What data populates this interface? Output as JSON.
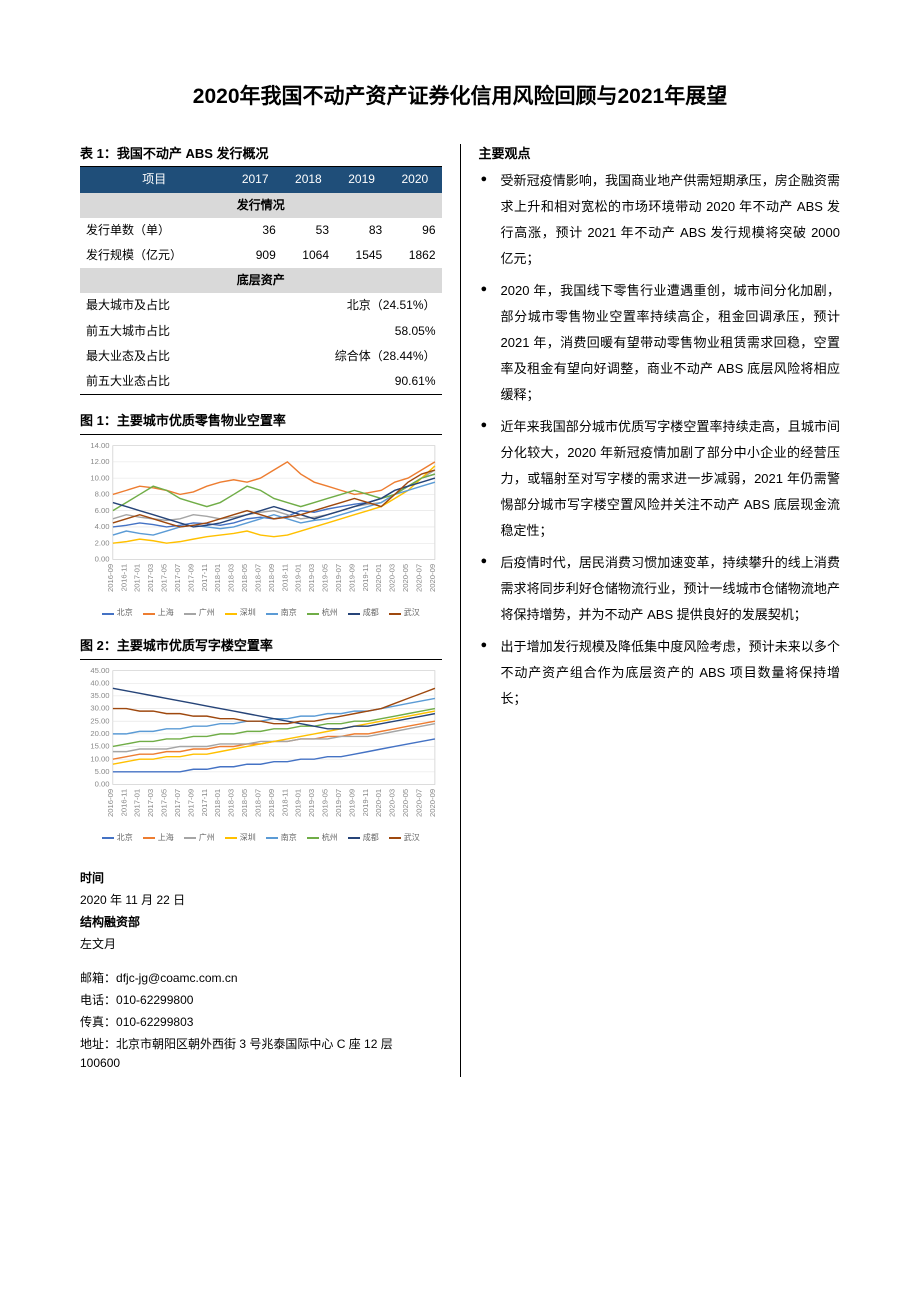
{
  "title": "2020年我国不动产资产证券化信用风险回顾与2021年展望",
  "table1": {
    "caption": "表 1：我国不动产 ABS 发行概况",
    "headers": [
      "项目",
      "2017",
      "2018",
      "2019",
      "2020"
    ],
    "section1_title": "发行情况",
    "rows1": [
      {
        "label": "发行单数（单）",
        "vals": [
          "36",
          "53",
          "83",
          "96"
        ]
      },
      {
        "label": "发行规模（亿元）",
        "vals": [
          "909",
          "1064",
          "1545",
          "1862"
        ]
      }
    ],
    "section2_title": "底层资产",
    "rows2": [
      {
        "label": "最大城市及占比",
        "merged": "北京（24.51%）"
      },
      {
        "label": "前五大城市占比",
        "merged": "58.05%"
      },
      {
        "label": "最大业态及占比",
        "merged": "综合体（28.44%）"
      },
      {
        "label": "前五大业态占比",
        "merged": "90.61%"
      }
    ]
  },
  "chart1": {
    "caption": "图 1：主要城市优质零售物业空置率",
    "ylim": [
      0,
      14
    ],
    "ytick_step": 2,
    "ylabels": [
      "0.00",
      "2.00",
      "4.00",
      "6.00",
      "8.00",
      "10.00",
      "12.00",
      "14.00"
    ],
    "xlabels": [
      "2016-09",
      "2016-11",
      "2017-01",
      "2017-03",
      "2017-05",
      "2017-07",
      "2017-09",
      "2017-11",
      "2018-01",
      "2018-03",
      "2018-05",
      "2018-07",
      "2018-09",
      "2018-11",
      "2019-01",
      "2019-03",
      "2019-05",
      "2019-07",
      "2019-09",
      "2019-11",
      "2020-01",
      "2020-03",
      "2020-05",
      "2020-07",
      "2020-09"
    ],
    "series": [
      {
        "name": "北京",
        "color": "#4472c4",
        "values": [
          4.0,
          4.2,
          4.5,
          4.3,
          4.0,
          4.2,
          4.5,
          4.4,
          4.2,
          4.5,
          5.0,
          5.2,
          5.0,
          5.3,
          6.0,
          5.8,
          6.2,
          6.5,
          6.8,
          7.0,
          7.5,
          8.5,
          9.0,
          10.0,
          10.5
        ]
      },
      {
        "name": "上海",
        "color": "#ed7d31",
        "values": [
          8.0,
          8.5,
          9.0,
          8.8,
          8.5,
          8.0,
          8.3,
          9.0,
          9.5,
          9.8,
          9.5,
          10.0,
          11.0,
          12.0,
          10.5,
          9.5,
          9.0,
          8.5,
          8.0,
          8.2,
          8.5,
          9.5,
          10.0,
          11.0,
          12.0
        ]
      },
      {
        "name": "广州",
        "color": "#a5a5a5",
        "values": [
          5.0,
          5.5,
          5.2,
          5.0,
          4.8,
          5.0,
          5.5,
          5.3,
          5.0,
          5.2,
          5.5,
          5.8,
          6.0,
          5.5,
          5.0,
          5.2,
          5.5,
          6.0,
          6.5,
          6.8,
          7.0,
          8.0,
          9.0,
          10.0,
          11.0
        ]
      },
      {
        "name": "深圳",
        "color": "#ffc000",
        "values": [
          2.0,
          2.2,
          2.5,
          2.3,
          2.0,
          2.2,
          2.5,
          2.8,
          3.0,
          3.2,
          3.5,
          3.0,
          2.8,
          3.0,
          3.5,
          4.0,
          4.5,
          5.0,
          5.5,
          6.0,
          6.5,
          7.5,
          8.5,
          10.0,
          11.5
        ]
      },
      {
        "name": "南京",
        "color": "#5b9bd5",
        "values": [
          3.0,
          3.5,
          3.2,
          3.0,
          3.5,
          4.0,
          4.2,
          4.0,
          3.8,
          4.0,
          4.5,
          5.0,
          5.5,
          5.0,
          4.5,
          4.8,
          5.0,
          5.5,
          6.0,
          6.5,
          7.0,
          8.0,
          8.5,
          9.0,
          9.5
        ]
      },
      {
        "name": "杭州",
        "color": "#70ad47",
        "values": [
          6.0,
          7.0,
          8.0,
          9.0,
          8.5,
          7.5,
          7.0,
          6.5,
          7.0,
          8.0,
          9.0,
          8.5,
          7.5,
          7.0,
          6.5,
          7.0,
          7.5,
          8.0,
          8.5,
          8.0,
          7.5,
          8.0,
          9.0,
          10.0,
          10.5
        ]
      },
      {
        "name": "成都",
        "color": "#264478",
        "values": [
          7.0,
          6.5,
          6.0,
          5.5,
          5.0,
          4.5,
          4.0,
          4.2,
          4.5,
          5.0,
          5.5,
          6.0,
          6.5,
          6.0,
          5.5,
          5.0,
          5.5,
          6.0,
          6.5,
          7.0,
          7.5,
          8.5,
          9.0,
          9.5,
          10.0
        ]
      },
      {
        "name": "武汉",
        "color": "#9e480e",
        "values": [
          4.5,
          5.0,
          5.5,
          5.0,
          4.5,
          4.0,
          4.2,
          4.5,
          5.0,
          5.5,
          6.0,
          5.5,
          5.0,
          5.2,
          5.5,
          6.0,
          6.5,
          7.0,
          7.5,
          7.0,
          6.5,
          8.0,
          9.5,
          10.5,
          11.0
        ]
      }
    ]
  },
  "chart2": {
    "caption": "图 2：主要城市优质写字楼空置率",
    "ylim": [
      0,
      45
    ],
    "ytick_step": 5,
    "ylabels": [
      "0.00",
      "5.00",
      "10.00",
      "15.00",
      "20.00",
      "25.00",
      "30.00",
      "35.00",
      "40.00",
      "45.00"
    ],
    "xlabels": [
      "2016-09",
      "2016-11",
      "2017-01",
      "2017-03",
      "2017-05",
      "2017-07",
      "2017-09",
      "2017-11",
      "2018-01",
      "2018-03",
      "2018-05",
      "2018-07",
      "2018-09",
      "2018-11",
      "2019-01",
      "2019-03",
      "2019-05",
      "2019-07",
      "2019-09",
      "2019-11",
      "2020-01",
      "2020-03",
      "2020-05",
      "2020-07",
      "2020-09"
    ],
    "series": [
      {
        "name": "北京",
        "color": "#4472c4",
        "values": [
          5,
          5,
          5,
          5,
          5,
          5,
          6,
          6,
          7,
          7,
          8,
          8,
          9,
          9,
          10,
          10,
          11,
          11,
          12,
          13,
          14,
          15,
          16,
          17,
          18
        ]
      },
      {
        "name": "上海",
        "color": "#ed7d31",
        "values": [
          10,
          11,
          12,
          12,
          13,
          13,
          14,
          14,
          15,
          15,
          16,
          16,
          17,
          17,
          18,
          18,
          19,
          19,
          20,
          20,
          21,
          22,
          23,
          24,
          25
        ]
      },
      {
        "name": "广州",
        "color": "#a5a5a5",
        "values": [
          13,
          13,
          14,
          14,
          14,
          15,
          15,
          15,
          16,
          16,
          16,
          17,
          17,
          17,
          18,
          18,
          18,
          19,
          19,
          19,
          20,
          21,
          22,
          23,
          24
        ]
      },
      {
        "name": "深圳",
        "color": "#ffc000",
        "values": [
          8,
          9,
          10,
          10,
          11,
          11,
          12,
          12,
          13,
          14,
          15,
          16,
          17,
          18,
          19,
          20,
          21,
          22,
          23,
          24,
          25,
          26,
          27,
          28,
          29
        ]
      },
      {
        "name": "南京",
        "color": "#5b9bd5",
        "values": [
          20,
          20,
          21,
          21,
          22,
          22,
          23,
          23,
          24,
          24,
          25,
          25,
          26,
          26,
          27,
          27,
          28,
          28,
          29,
          29,
          30,
          31,
          32,
          33,
          34
        ]
      },
      {
        "name": "杭州",
        "color": "#70ad47",
        "values": [
          15,
          16,
          17,
          17,
          18,
          18,
          19,
          19,
          20,
          20,
          21,
          21,
          22,
          22,
          23,
          23,
          24,
          24,
          25,
          25,
          26,
          27,
          28,
          29,
          30
        ]
      },
      {
        "name": "成都",
        "color": "#264478",
        "values": [
          38,
          37,
          36,
          35,
          34,
          33,
          32,
          31,
          30,
          29,
          28,
          27,
          26,
          25,
          24,
          23,
          22,
          22,
          23,
          23,
          24,
          25,
          26,
          27,
          28
        ]
      },
      {
        "name": "武汉",
        "color": "#9e480e",
        "values": [
          30,
          30,
          29,
          29,
          28,
          28,
          27,
          27,
          26,
          26,
          25,
          25,
          24,
          24,
          25,
          25,
          26,
          27,
          28,
          29,
          30,
          32,
          34,
          36,
          38
        ]
      }
    ]
  },
  "meta": {
    "time_label": "时间",
    "time_value": "2020 年 11 月 22 日",
    "dept_label": "结构融资部",
    "author": "左文月",
    "email_label": "邮箱：",
    "email_value": "dfjc-jg@coamc.com.cn",
    "phone_label": "电话：",
    "phone_value": "010-62299800",
    "fax_label": "传真：",
    "fax_value": "010-62299803",
    "addr_label": "地址：",
    "addr_value": "北京市朝阳区朝外西街 3 号兆泰国际中心 C 座 12 层　100600"
  },
  "viewpoints": {
    "heading": "主要观点",
    "items": [
      "受新冠疫情影响，我国商业地产供需短期承压，房企融资需求上升和相对宽松的市场环境带动 2020 年不动产 ABS 发行高涨，预计 2021 年不动产 ABS 发行规模将突破 2000 亿元；",
      "2020 年，我国线下零售行业遭遇重创，城市间分化加剧，部分城市零售物业空置率持续高企，租金回调承压，预计 2021 年，消费回暖有望带动零售物业租赁需求回稳，空置率及租金有望向好调整，商业不动产 ABS 底层风险将相应缓释；",
      "近年来我国部分城市优质写字楼空置率持续走高，且城市间分化较大，2020 年新冠疫情加剧了部分中小企业的经营压力，或辐射至对写字楼的需求进一步减弱，2021 年仍需警惕部分城市写字楼空置风险并关注不动产 ABS 底层现金流稳定性；",
      "后疫情时代，居民消费习惯加速变革，持续攀升的线上消费需求将同步利好仓储物流行业，预计一线城市仓储物流地产将保持增势，并为不动产 ABS 提供良好的发展契机；",
      "出于增加发行规模及降低集中度风险考虑，预计未来以多个不动产资产组合作为底层资产的 ABS 项目数量将保持增长；"
    ]
  }
}
